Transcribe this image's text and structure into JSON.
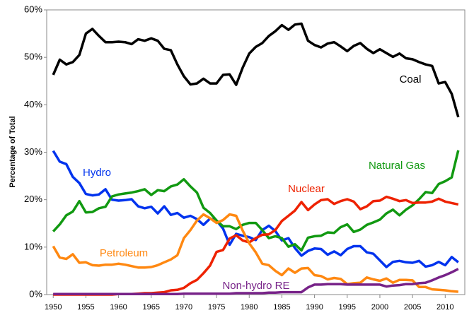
{
  "chart_data": {
    "type": "line",
    "y_label": "Percentage of Total",
    "x": [
      1950,
      1951,
      1952,
      1953,
      1954,
      1955,
      1956,
      1957,
      1958,
      1959,
      1960,
      1961,
      1962,
      1963,
      1964,
      1965,
      1966,
      1967,
      1968,
      1969,
      1970,
      1971,
      1972,
      1973,
      1974,
      1975,
      1976,
      1977,
      1978,
      1979,
      1980,
      1981,
      1982,
      1983,
      1984,
      1985,
      1986,
      1987,
      1988,
      1989,
      1990,
      1991,
      1992,
      1993,
      1994,
      1995,
      1996,
      1997,
      1998,
      1999,
      2000,
      2001,
      2002,
      2003,
      2004,
      2005,
      2006,
      2007,
      2008,
      2009,
      2010,
      2011,
      2012
    ],
    "xlim": [
      1949,
      2013
    ],
    "xticks": [
      1950,
      1955,
      1960,
      1965,
      1970,
      1975,
      1980,
      1985,
      1990,
      1995,
      2000,
      2005,
      2010
    ],
    "ylim": [
      0,
      60
    ],
    "yticks": [
      {
        "value": 0,
        "label": "0%"
      },
      {
        "value": 10,
        "label": "10%"
      },
      {
        "value": 20,
        "label": "20%"
      },
      {
        "value": 30,
        "label": "30%"
      },
      {
        "value": 40,
        "label": "40%"
      },
      {
        "value": 50,
        "label": "50%"
      },
      {
        "value": 60,
        "label": "60%"
      }
    ],
    "grid": false,
    "series": [
      {
        "name": "Coal",
        "color": "#000000",
        "values": [
          46.3,
          49.5,
          48.5,
          49.0,
          50.5,
          55,
          56,
          54.5,
          53.2,
          53.2,
          53.3,
          53.2,
          52.8,
          53.8,
          53.5,
          54,
          53.5,
          51.8,
          51.5,
          48.5,
          46,
          44.3,
          44.5,
          45.5,
          44.5,
          44.5,
          46.3,
          46.4,
          44.2,
          47.8,
          50.8,
          52.2,
          53,
          54.5,
          55.5,
          56.8,
          55.8,
          56.9,
          57.1,
          53.5,
          52.6,
          52.1,
          52.9,
          53.2,
          52.3,
          51.3,
          52.4,
          53,
          51.8,
          50.9,
          51.7,
          50.9,
          50.1,
          50.8,
          49.8,
          49.6,
          49.0,
          48.5,
          48.2,
          44.5,
          44.8,
          42.3,
          37.4
        ]
      },
      {
        "name": "Hydro",
        "color": "#0033ee",
        "values": [
          30.3,
          28,
          27.5,
          24.8,
          23.5,
          21.2,
          20.9,
          21.1,
          22.2,
          20,
          19.8,
          19.9,
          20.1,
          18.6,
          18.2,
          18.5,
          17.1,
          18.6,
          16.8,
          17.2,
          16.2,
          16.6,
          15.9,
          14.7,
          16,
          15.6,
          13.9,
          10.5,
          12.8,
          12.4,
          12.1,
          11.5,
          13.6,
          14.5,
          13.4,
          11.4,
          11.9,
          9.8,
          8.2,
          9.2,
          9.7,
          9.6,
          8.4,
          9.1,
          8.3,
          9.6,
          10.2,
          10.2,
          8.9,
          8.6,
          7.2,
          5.8,
          6.9,
          7.1,
          6.8,
          6.7,
          7.1,
          5.9,
          6.2,
          6.9,
          6.2,
          7.9,
          6.8
        ]
      },
      {
        "name": "Natural Gas",
        "color": "#119911",
        "values": [
          13.3,
          14.8,
          16.7,
          17.5,
          19.7,
          17.3,
          17.4,
          18.2,
          18.5,
          20.7,
          21.1,
          21.3,
          21.5,
          21.8,
          22.2,
          21,
          22,
          21.8,
          22.8,
          23.2,
          24.3,
          22.8,
          21.5,
          18.3,
          17.2,
          15.6,
          14.4,
          14.4,
          13.8,
          14.7,
          15.1,
          15.1,
          13.6,
          11.9,
          12.3,
          11.9,
          10.1,
          10.6,
          9.3,
          12,
          12.3,
          12.4,
          13.1,
          13.0,
          14.2,
          14.8,
          13.2,
          13.7,
          14.7,
          15.2,
          15.8,
          17.1,
          17.9,
          16.7,
          17.9,
          18.8,
          20.1,
          21.6,
          21.4,
          23.3,
          23.9,
          24.7,
          30.4
        ]
      },
      {
        "name": "Nuclear",
        "color": "#ee2200",
        "values": [
          0,
          0,
          0,
          0,
          0,
          0,
          0,
          0,
          0,
          0,
          0.1,
          0.1,
          0.1,
          0.2,
          0.3,
          0.3,
          0.4,
          0.5,
          0.9,
          1.0,
          1.4,
          2.4,
          3.1,
          4.5,
          6.1,
          9.0,
          9.4,
          11.8,
          12.5,
          11.4,
          11.0,
          11.9,
          12.6,
          12.7,
          13.6,
          15.5,
          16.6,
          17.7,
          19.5,
          17.8,
          19.0,
          19.9,
          20.1,
          19.1,
          19.7,
          20.1,
          19.6,
          18.0,
          18.6,
          19.7,
          19.8,
          20.6,
          20.2,
          19.7,
          19.9,
          19.3,
          19.4,
          19.4,
          19.6,
          20.2,
          19.6,
          19.3,
          19.0
        ]
      },
      {
        "name": "Petroleum",
        "color": "#ff8811",
        "values": [
          10.2,
          7.8,
          7.5,
          8.5,
          6.7,
          6.8,
          6.2,
          6.1,
          6.3,
          6.3,
          6.5,
          6.3,
          6.0,
          5.7,
          5.7,
          5.8,
          6.2,
          6.8,
          7.4,
          8.3,
          11.9,
          13.6,
          15.6,
          16.9,
          16.1,
          15.1,
          15.7,
          16.9,
          16.6,
          13.5,
          10.8,
          8.9,
          6.5,
          6.2,
          5.0,
          4.1,
          5.5,
          4.6,
          5.5,
          5.6,
          4.1,
          3.9,
          3.2,
          3.5,
          3.3,
          2.2,
          2.4,
          2.5,
          3.6,
          3.2,
          2.9,
          3.4,
          2.5,
          3.1,
          3.1,
          3.0,
          1.6,
          1.6,
          1.1,
          1.0,
          0.9,
          0.7,
          0.6
        ]
      },
      {
        "name": "Non-hydro RE",
        "color": "#772288",
        "values": [
          0.1,
          0.1,
          0.1,
          0.1,
          0.1,
          0.1,
          0.1,
          0.1,
          0.1,
          0.1,
          0.1,
          0.1,
          0.1,
          0.1,
          0.1,
          0.1,
          0.1,
          0.1,
          0.1,
          0.1,
          0.2,
          0.2,
          0.2,
          0.2,
          0.2,
          0.2,
          0.2,
          0.2,
          0.3,
          0.3,
          0.3,
          0.3,
          0.3,
          0.4,
          0.4,
          0.5,
          0.5,
          0.5,
          0.5,
          1.5,
          2.1,
          2.1,
          2.2,
          2.2,
          2.2,
          2.1,
          2.1,
          2.1,
          2.1,
          2.1,
          2.1,
          1.7,
          1.9,
          2.0,
          2.2,
          2.2,
          2.4,
          2.5,
          3.0,
          3.6,
          4.1,
          4.7,
          5.4
        ]
      }
    ]
  }
}
